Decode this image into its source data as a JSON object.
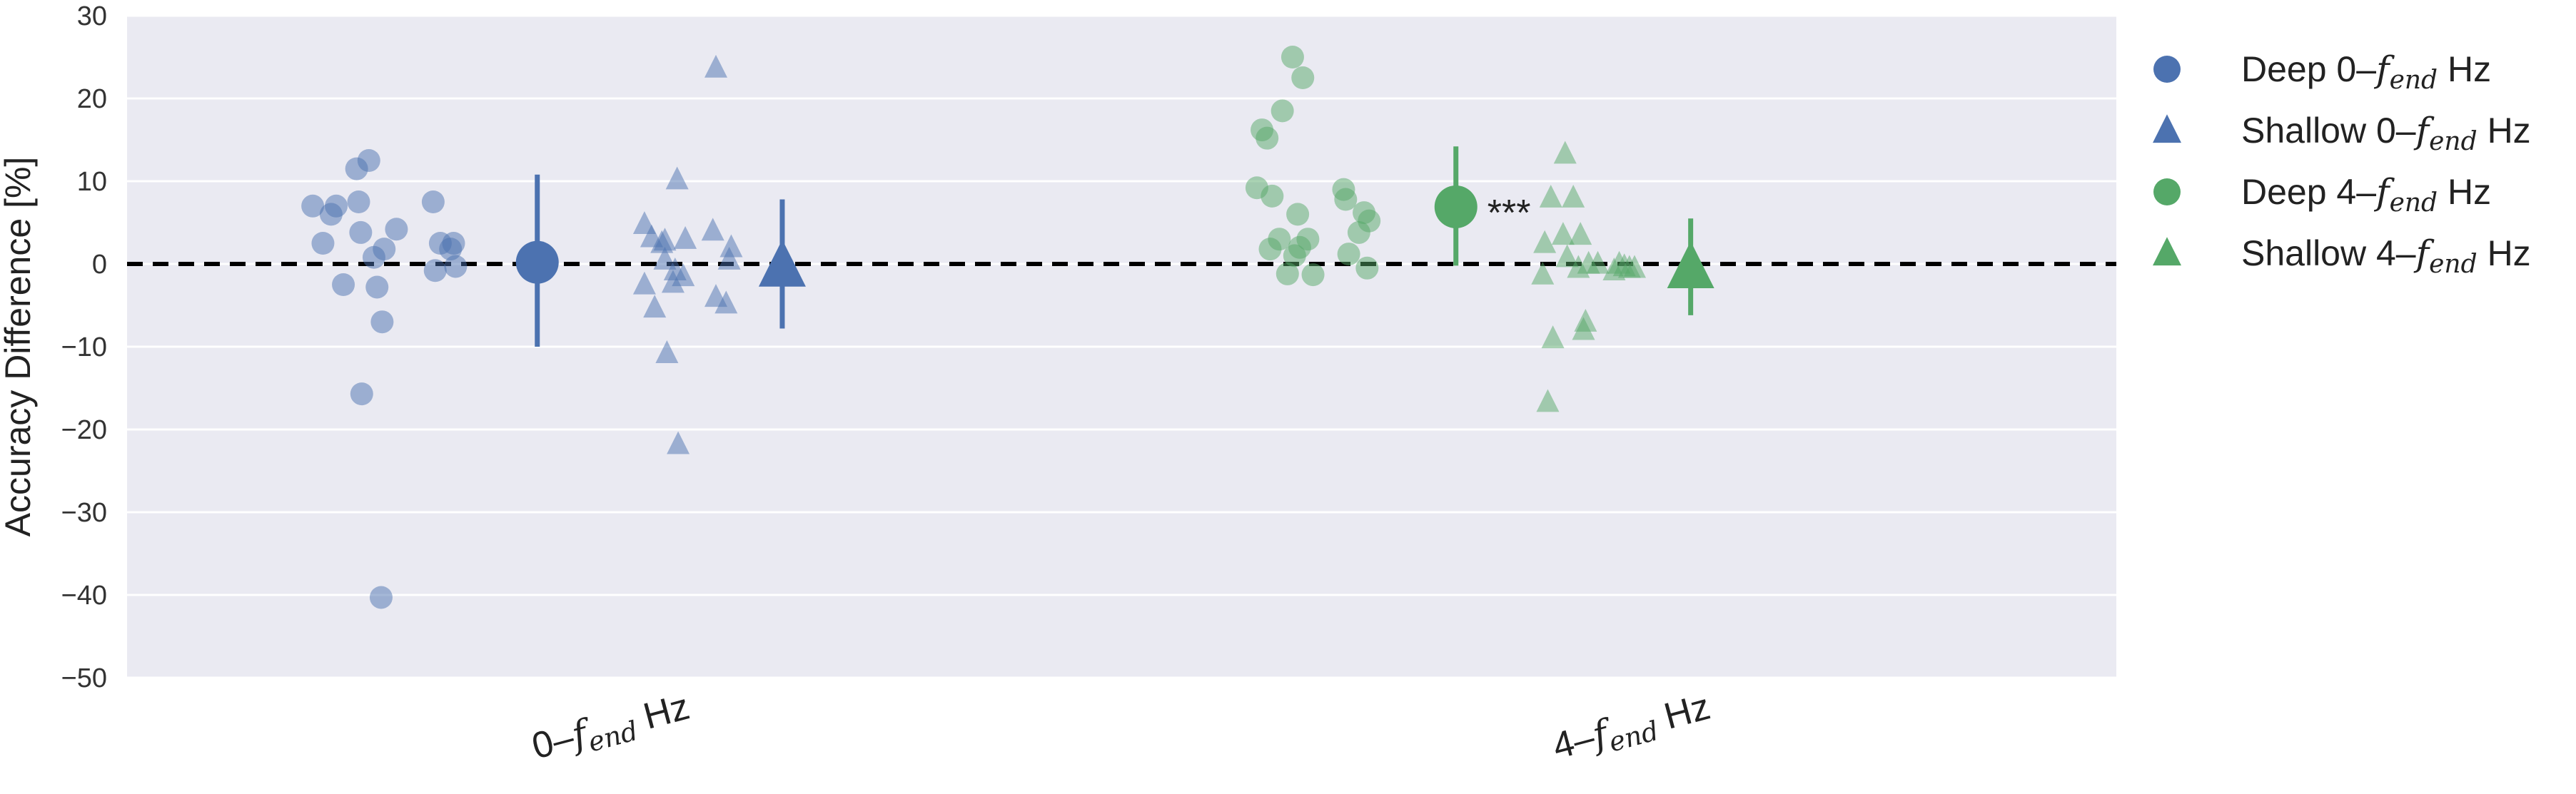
{
  "chart_data": {
    "type": "scatter",
    "title": "",
    "ylabel": "Accuracy Difference [%]",
    "ylim": [
      -50,
      30
    ],
    "yticks": [
      -50,
      -40,
      -30,
      -20,
      -10,
      0,
      10,
      20,
      30
    ],
    "ytick_labels": [
      "−50",
      "−40",
      "−30",
      "−20",
      "−10",
      "0",
      "10",
      "20",
      "30"
    ],
    "grid": true,
    "reference_line": {
      "y": 0,
      "style": "dashed",
      "color": "#000000"
    },
    "legend_position": "outside-right",
    "categories": [
      {
        "label_main": "0–",
        "label_sym": "f",
        "label_sub": "end",
        "label_unit": " Hz"
      },
      {
        "label_main": "4–",
        "label_sym": "f",
        "label_sub": "end",
        "label_unit": " Hz"
      }
    ],
    "series": [
      {
        "name": "Deep 0–f_end Hz",
        "legend": {
          "main": "Deep 0–",
          "sym": "f",
          "sub": "end",
          "unit": " Hz"
        },
        "marker": "circle",
        "color": "#4c72b0",
        "category": 0,
        "points": [
          {
            "dx": -0.295,
            "y": 7
          },
          {
            "dx": -0.285,
            "y": 2.5
          },
          {
            "dx": -0.277,
            "y": 6
          },
          {
            "dx": -0.272,
            "y": 7
          },
          {
            "dx": -0.265,
            "y": -2.5
          },
          {
            "dx": -0.252,
            "y": 11.5
          },
          {
            "dx": -0.25,
            "y": 7.5
          },
          {
            "dx": -0.248,
            "y": 3.8
          },
          {
            "dx": -0.247,
            "y": -15.7
          },
          {
            "dx": -0.24,
            "y": 12.5
          },
          {
            "dx": -0.235,
            "y": 0.8
          },
          {
            "dx": -0.232,
            "y": -2.8
          },
          {
            "dx": -0.228,
            "y": -40.3
          },
          {
            "dx": -0.227,
            "y": -7
          },
          {
            "dx": -0.225,
            "y": 1.8
          },
          {
            "dx": -0.213,
            "y": 4.2
          },
          {
            "dx": -0.177,
            "y": 7.5
          },
          {
            "dx": -0.175,
            "y": -0.8
          },
          {
            "dx": -0.17,
            "y": 2.5
          },
          {
            "dx": -0.16,
            "y": 1.8
          },
          {
            "dx": -0.157,
            "y": 2.5
          },
          {
            "dx": -0.155,
            "y": -0.3
          }
        ],
        "mean": {
          "dx": -0.075,
          "y": 0.2,
          "err_low": -10,
          "err_high": 10.8
        }
      },
      {
        "name": "Shallow 0–f_end Hz",
        "legend": {
          "main": "Shallow 0–",
          "sym": "f",
          "sub": "end",
          "unit": " Hz"
        },
        "marker": "triangle",
        "color": "#4c72b0",
        "category": 0,
        "points": [
          {
            "dx": 0.03,
            "y": 4.8
          },
          {
            "dx": 0.03,
            "y": -2.5
          },
          {
            "dx": 0.037,
            "y": 3.2
          },
          {
            "dx": 0.04,
            "y": -5.3
          },
          {
            "dx": 0.047,
            "y": 2.5
          },
          {
            "dx": 0.05,
            "y": 0.5
          },
          {
            "dx": 0.05,
            "y": 2.8
          },
          {
            "dx": 0.052,
            "y": -10.8
          },
          {
            "dx": 0.058,
            "y": -2.3
          },
          {
            "dx": 0.06,
            "y": -0.8
          },
          {
            "dx": 0.062,
            "y": 10.2
          },
          {
            "dx": 0.063,
            "y": -21.8
          },
          {
            "dx": 0.068,
            "y": -1.5
          },
          {
            "dx": 0.07,
            "y": 3
          },
          {
            "dx": 0.097,
            "y": 4
          },
          {
            "dx": 0.1,
            "y": 23.7
          },
          {
            "dx": 0.1,
            "y": -4
          },
          {
            "dx": 0.11,
            "y": -4.8
          },
          {
            "dx": 0.113,
            "y": 0.5
          },
          {
            "dx": 0.115,
            "y": 2
          }
        ],
        "mean": {
          "dx": 0.165,
          "y": -0.3,
          "err_low": -7.8,
          "err_high": 7.8
        }
      },
      {
        "name": "Deep 4–f_end Hz",
        "legend": {
          "main": "Deep 4–",
          "sym": "f",
          "sub": "end",
          "unit": " Hz"
        },
        "marker": "circle",
        "color": "#55a868",
        "category": 1,
        "points": [
          {
            "dx": -0.37,
            "y": 9.2
          },
          {
            "dx": -0.365,
            "y": 16.2
          },
          {
            "dx": -0.36,
            "y": 15.2
          },
          {
            "dx": -0.357,
            "y": 1.8
          },
          {
            "dx": -0.355,
            "y": 8.2
          },
          {
            "dx": -0.348,
            "y": 3
          },
          {
            "dx": -0.345,
            "y": 18.5
          },
          {
            "dx": -0.34,
            "y": -1.2
          },
          {
            "dx": -0.335,
            "y": 25
          },
          {
            "dx": -0.333,
            "y": 1
          },
          {
            "dx": -0.33,
            "y": 6
          },
          {
            "dx": -0.328,
            "y": 2
          },
          {
            "dx": -0.325,
            "y": 22.5
          },
          {
            "dx": -0.32,
            "y": 3
          },
          {
            "dx": -0.315,
            "y": -1.3
          },
          {
            "dx": -0.285,
            "y": 9
          },
          {
            "dx": -0.283,
            "y": 7.8
          },
          {
            "dx": -0.28,
            "y": 1.2
          },
          {
            "dx": -0.27,
            "y": 3.8
          },
          {
            "dx": -0.265,
            "y": 6.2
          },
          {
            "dx": -0.262,
            "y": -0.5
          },
          {
            "dx": -0.26,
            "y": 5.2
          }
        ],
        "mean": {
          "dx": -0.175,
          "y": 6.9,
          "err_low": -0.2,
          "err_high": 14.2
        },
        "annotation": "***"
      },
      {
        "name": "Shallow 4–f_end Hz",
        "legend": {
          "main": "Shallow 4–",
          "sym": "f",
          "sub": "end",
          "unit": " Hz"
        },
        "marker": "triangle",
        "color": "#55a868",
        "category": 1,
        "points": [
          {
            "dx": -0.09,
            "y": -1.3
          },
          {
            "dx": -0.088,
            "y": 2.5
          },
          {
            "dx": -0.085,
            "y": -16.7
          },
          {
            "dx": -0.082,
            "y": 8
          },
          {
            "dx": -0.08,
            "y": -9
          },
          {
            "dx": -0.07,
            "y": 3.5
          },
          {
            "dx": -0.068,
            "y": 13.3
          },
          {
            "dx": -0.066,
            "y": 0.8
          },
          {
            "dx": -0.06,
            "y": 8
          },
          {
            "dx": -0.055,
            "y": -0.5
          },
          {
            "dx": -0.053,
            "y": 3.5
          },
          {
            "dx": -0.05,
            "y": -8
          },
          {
            "dx": -0.048,
            "y": -7
          },
          {
            "dx": -0.045,
            "y": 0
          },
          {
            "dx": -0.036,
            "y": 0
          },
          {
            "dx": -0.02,
            "y": -0.8
          },
          {
            "dx": -0.015,
            "y": 0
          },
          {
            "dx": -0.01,
            "y": -0.3
          },
          {
            "dx": -0.005,
            "y": -0.5
          },
          {
            "dx": 0.0,
            "y": -0.5
          }
        ],
        "mean": {
          "dx": 0.055,
          "y": -0.5,
          "err_low": -6.2,
          "err_high": 5.5
        }
      }
    ]
  }
}
